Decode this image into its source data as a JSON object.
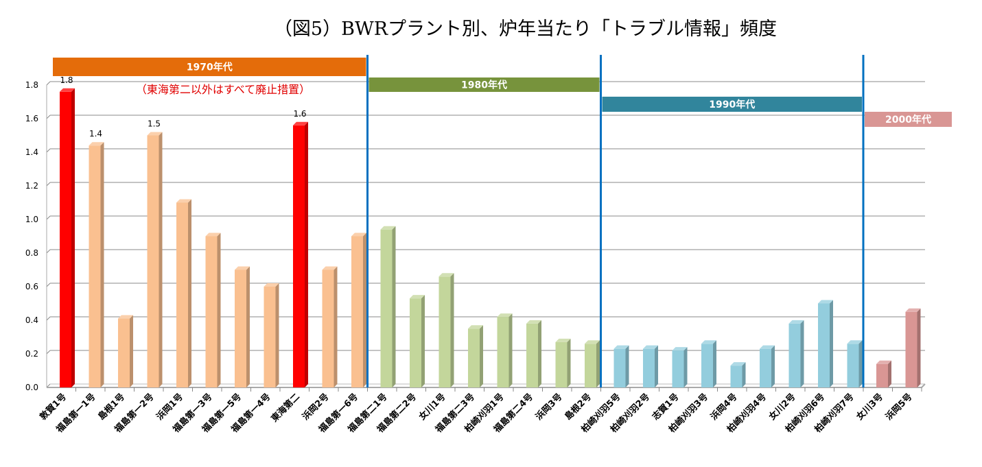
{
  "chart_data": {
    "type": "bar",
    "title": "（図5）BWRプラント別、炉年当たり「トラブル情報」頻度",
    "xlabel": "",
    "ylabel": "",
    "ylim": [
      0,
      1.8
    ],
    "yticks": [
      "0.0",
      "0.2",
      "0.4",
      "0.6",
      "0.8",
      "1.0",
      "1.2",
      "1.4",
      "1.6",
      "1.8"
    ],
    "grid": true,
    "categories": [
      "敦賀1号",
      "福島第一1号",
      "島根1号",
      "福島第一2号",
      "浜岡1号",
      "福島第一3号",
      "福島第一5号",
      "福島第一4号",
      "東海第二",
      "浜岡2号",
      "福島第一6号",
      "福島第二1号",
      "福島第二2号",
      "女川1号",
      "福島第二3号",
      "柏崎刈羽1号",
      "福島第二4号",
      "浜岡3号",
      "島根2号",
      "柏崎刈羽5号",
      "柏崎刈羽2号",
      "志賀1号",
      "柏崎刈羽3号",
      "浜岡4号",
      "柏崎刈羽4号",
      "女川2号",
      "柏崎刈羽6号",
      "柏崎刈羽7号",
      "女川3号",
      "浜岡5号"
    ],
    "values": [
      1.76,
      1.44,
      0.41,
      1.5,
      1.1,
      0.9,
      0.7,
      0.6,
      1.56,
      0.7,
      0.9,
      0.94,
      0.53,
      0.66,
      0.35,
      0.42,
      0.38,
      0.27,
      0.26,
      0.23,
      0.23,
      0.22,
      0.26,
      0.13,
      0.23,
      0.38,
      0.5,
      0.26,
      0.14,
      0.45
    ],
    "bar_groups": [
      "red",
      "1970",
      "1970",
      "1970",
      "1970",
      "1970",
      "1970",
      "1970",
      "red",
      "1970",
      "1970",
      "1980",
      "1980",
      "1980",
      "1980",
      "1980",
      "1980",
      "1980",
      "1980",
      "1990",
      "1990",
      "1990",
      "1990",
      "1990",
      "1990",
      "1990",
      "1990",
      "1990",
      "2000",
      "2000"
    ],
    "data_labels": [
      {
        "index": 0,
        "text": "1.8"
      },
      {
        "index": 1,
        "text": "1.4"
      },
      {
        "index": 3,
        "text": "1.5"
      },
      {
        "index": 8,
        "text": "1.6"
      }
    ],
    "colors": {
      "red": "#ff0000",
      "1970": "#fac090",
      "1980": "#c3d69b",
      "1990": "#93cddd",
      "2000": "#d99694"
    },
    "decades": [
      {
        "label": "1970年代",
        "color": "#e46c0a",
        "start": 0,
        "end": 10
      },
      {
        "label": "1980年代",
        "color": "#77933c",
        "start": 11,
        "end": 18
      },
      {
        "label": "1990年代",
        "color": "#31859c",
        "start": 19,
        "end": 27
      },
      {
        "label": "2000年代",
        "color": "#d99694",
        "start": 28,
        "end": 29
      }
    ],
    "divider_color": "#0070c0",
    "annotation": "（東海第二以外はすべて廃止措置）",
    "annotation_color": "#e00000"
  }
}
